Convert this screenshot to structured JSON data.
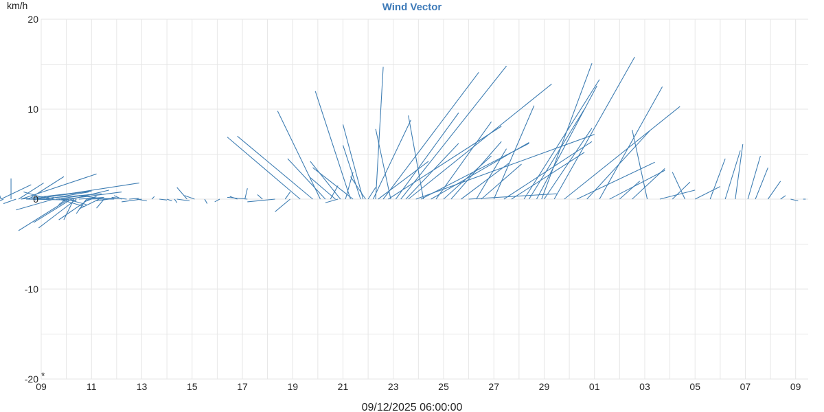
{
  "chart": {
    "title": "Wind Vector",
    "y_unit": "km/h",
    "readout": "09/12/2025 06:00:00",
    "corner_marker": "*"
  },
  "colors": {
    "title": "#3d7ab8",
    "vector": "#3f7eb3",
    "grid": "#e6e6e6",
    "axis_text": "#222222"
  },
  "chart_data": {
    "type": "line",
    "title": "Wind Vector",
    "ylabel": "km/h",
    "xlabel": "",
    "ylim": [
      -20,
      20
    ],
    "y_ticks": [
      -20,
      -10,
      0,
      10,
      20
    ],
    "y_minor_step": 5,
    "x_range_days": [
      0,
      30.5
    ],
    "x_tick_step_days": 2,
    "x_minor_step_days": 1,
    "x_tick_labels": [
      "09",
      "11",
      "13",
      "15",
      "17",
      "19",
      "21",
      "23",
      "25",
      "27",
      "29",
      "01",
      "03",
      "05",
      "07",
      "09"
    ],
    "grid": true,
    "legend": "none",
    "series": [
      {
        "vectors": [
          [
            -1.7,
            0,
            3.8
          ],
          [
            -1.2,
            0,
            2.3
          ],
          [
            0.3,
            -1.0,
            0.8
          ],
          [
            -1.6,
            -0.3,
            2.5
          ],
          [
            -0.9,
            1.0,
            1.8
          ],
          [
            -0.5,
            1.4,
            2.5
          ],
          [
            -1.9,
            -1.6,
            -1.7
          ],
          [
            -1.7,
            -0.8,
            -1.5
          ],
          [
            -1.5,
            -2.0,
            -2.6
          ],
          [
            -1.6,
            1.2,
            1.6
          ],
          [
            0.5,
            -0.4,
            0.3
          ],
          [
            -0.8,
            3.0,
            2.8
          ],
          [
            -0.3,
            4.2,
            1.8
          ],
          [
            -0.2,
            2.6,
            0.6
          ],
          [
            0.2,
            1.7,
            0.8
          ],
          [
            -0.4,
            2.4,
            0.9
          ],
          [
            0.6,
            1.3,
            0.5
          ],
          [
            0.8,
            0.6,
            0.1
          ],
          [
            -1.0,
            -0.5,
            -0.5
          ],
          [
            -0.3,
            0.1,
            -0.1
          ],
          [
            -0.8,
            2.8,
            0.9
          ],
          [
            0.2,
            0.3,
            0.2
          ],
          [
            0.5,
            -1.5,
            -1.2
          ],
          [
            1.0,
            -0.3,
            -0.6
          ],
          [
            1.2,
            1.5,
            1.0
          ],
          [
            1.0,
            2.2,
            0.8
          ],
          [
            -0.6,
            1.9,
            -0.1
          ],
          [
            1.0,
            0.8,
            -0.6
          ],
          [
            0.8,
            0.6,
            -0.2
          ],
          [
            1.2,
            -1.5,
            -2.6
          ],
          [
            0.7,
            1.0,
            -0.8
          ],
          [
            1.1,
            -2.0,
            -3.5
          ],
          [
            1.4,
            -1.5,
            -3.2
          ],
          [
            1.5,
            1.0,
            0.2
          ],
          [
            1.8,
            -0.4,
            -1.6
          ],
          [
            1.3,
            -0.4,
            -2.3
          ],
          [
            1.8,
            1.3,
            0.1
          ],
          [
            1.9,
            -1.2,
            -2.3
          ],
          [
            1.9,
            0.3,
            0.3
          ],
          [
            2.0,
            -0.3,
            -0.3
          ],
          [
            2.3,
            -0.8,
            -1.1
          ],
          [
            2.6,
            -1.1,
            0.4
          ],
          [
            2.5,
            -0.3,
            -1.0
          ],
          [
            2.7,
            -0.5,
            -0.2
          ],
          [
            2.9,
            -0.6,
            0.0
          ],
          [
            3.2,
            -0.3,
            0.4
          ],
          [
            3.4,
            -0.6,
            0.2
          ],
          [
            3.5,
            0.4,
            0.1
          ],
          [
            3.8,
            0.4,
            -0.2
          ],
          [
            4.0,
            -0.8,
            -0.3
          ],
          [
            4.4,
            0.1,
            0.3
          ],
          [
            4.7,
            0.3,
            -0.1
          ],
          [
            5.0,
            0.2,
            -0.2
          ],
          [
            5.3,
            0.1,
            -0.4
          ],
          [
            5.4,
            0.5,
            -0.2
          ],
          [
            5.8,
            -0.4,
            1.3
          ],
          [
            6.1,
            -0.4,
            0.4
          ],
          [
            6.5,
            0.1,
            -0.5
          ],
          [
            7.1,
            -0.2,
            -0.3
          ],
          [
            7.8,
            -0.3,
            0.3
          ],
          [
            8.1,
            0.1,
            1.2
          ],
          [
            8.2,
            -0.8,
            0.2
          ],
          [
            8.8,
            -0.2,
            0.5
          ],
          [
            9.3,
            -1.1,
            -0.3
          ],
          [
            9.7,
            0.2,
            0.8
          ],
          [
            9.9,
            -0.6,
            -1.4
          ],
          [
            10.3,
            -2.9,
            6.9
          ],
          [
            10.8,
            -3.0,
            7.0
          ],
          [
            11.1,
            -1.7,
            9.8
          ],
          [
            11.3,
            -1.5,
            4.5
          ],
          [
            11.5,
            0.3,
            1.5
          ],
          [
            11.7,
            -1.0,
            2.4
          ],
          [
            11.8,
            -0.5,
            -0.4
          ],
          [
            11.9,
            -1.2,
            4.2
          ],
          [
            12.1,
            0.3,
            3.0
          ],
          [
            12.3,
            -1.4,
            12.0
          ],
          [
            12.4,
            -1.6,
            3.5
          ],
          [
            12.7,
            -0.7,
            6.0
          ],
          [
            12.9,
            -0.6,
            2.5
          ],
          [
            13.0,
            0.3,
            1.3
          ],
          [
            12.8,
            -0.8,
            8.3
          ],
          [
            13.2,
            1.5,
            8.8
          ],
          [
            13.3,
            0.3,
            14.7
          ],
          [
            13.4,
            2.0,
            4.2
          ],
          [
            13.6,
            3.8,
            14.1
          ],
          [
            13.8,
            4.5,
            8.1
          ],
          [
            13.9,
            -0.6,
            7.8
          ],
          [
            14.1,
            2.5,
            9.6
          ],
          [
            14.3,
            4.2,
            14.8
          ],
          [
            14.5,
            2.1,
            6.2
          ],
          [
            14.6,
            5.7,
            12.8
          ],
          [
            14.9,
            7.1,
            7.2
          ],
          [
            15.1,
            4.3,
            6.2
          ],
          [
            15.2,
            -0.6,
            9.3
          ],
          [
            15.5,
            3.9,
            6.3
          ],
          [
            15.7,
            2.2,
            8.6
          ],
          [
            16.0,
            1.9,
            4.8
          ],
          [
            16.3,
            2.0,
            6.4
          ],
          [
            16.7,
            1.9,
            4.0
          ],
          [
            17.0,
            3.5,
            0.6
          ],
          [
            17.3,
            1.2,
            5.6
          ],
          [
            17.5,
            1.6,
            3.9
          ],
          [
            18.0,
            1.6,
            10.4
          ],
          [
            18.4,
            3.5,
            6.4
          ],
          [
            18.7,
            2.9,
            5.2
          ],
          [
            19.2,
            3.0,
            13.3
          ],
          [
            19.4,
            2.2,
            10.0
          ],
          [
            19.7,
            2.4,
            12.6
          ],
          [
            19.9,
            2.0,
            15.1
          ],
          [
            20.0,
            1.9,
            7.9
          ],
          [
            20.4,
            3.2,
            15.8
          ],
          [
            20.8,
            4.6,
            10.3
          ],
          [
            21.3,
            3.1,
            4.1
          ],
          [
            21.7,
            2.5,
            7.6
          ],
          [
            22.2,
            2.5,
            12.5
          ],
          [
            22.6,
            2.2,
            3.2
          ],
          [
            23.0,
            0.8,
            2.0
          ],
          [
            23.5,
            1.3,
            3.4
          ],
          [
            24.1,
            -0.6,
            7.7
          ],
          [
            24.6,
            1.4,
            1.0
          ],
          [
            25.1,
            0.7,
            1.9
          ],
          [
            25.6,
            -0.5,
            3.0
          ],
          [
            26.0,
            1.0,
            1.4
          ],
          [
            26.6,
            0.6,
            4.5
          ],
          [
            27.2,
            0.6,
            5.4
          ],
          [
            27.6,
            0.3,
            6.1
          ],
          [
            28.1,
            0.5,
            4.8
          ],
          [
            28.4,
            0.5,
            3.5
          ],
          [
            28.9,
            0.5,
            2.0
          ],
          [
            29.4,
            0.2,
            0.4
          ],
          [
            29.8,
            0.3,
            -0.2
          ],
          [
            30.3,
            0.1,
            0.0
          ]
        ]
      }
    ]
  }
}
